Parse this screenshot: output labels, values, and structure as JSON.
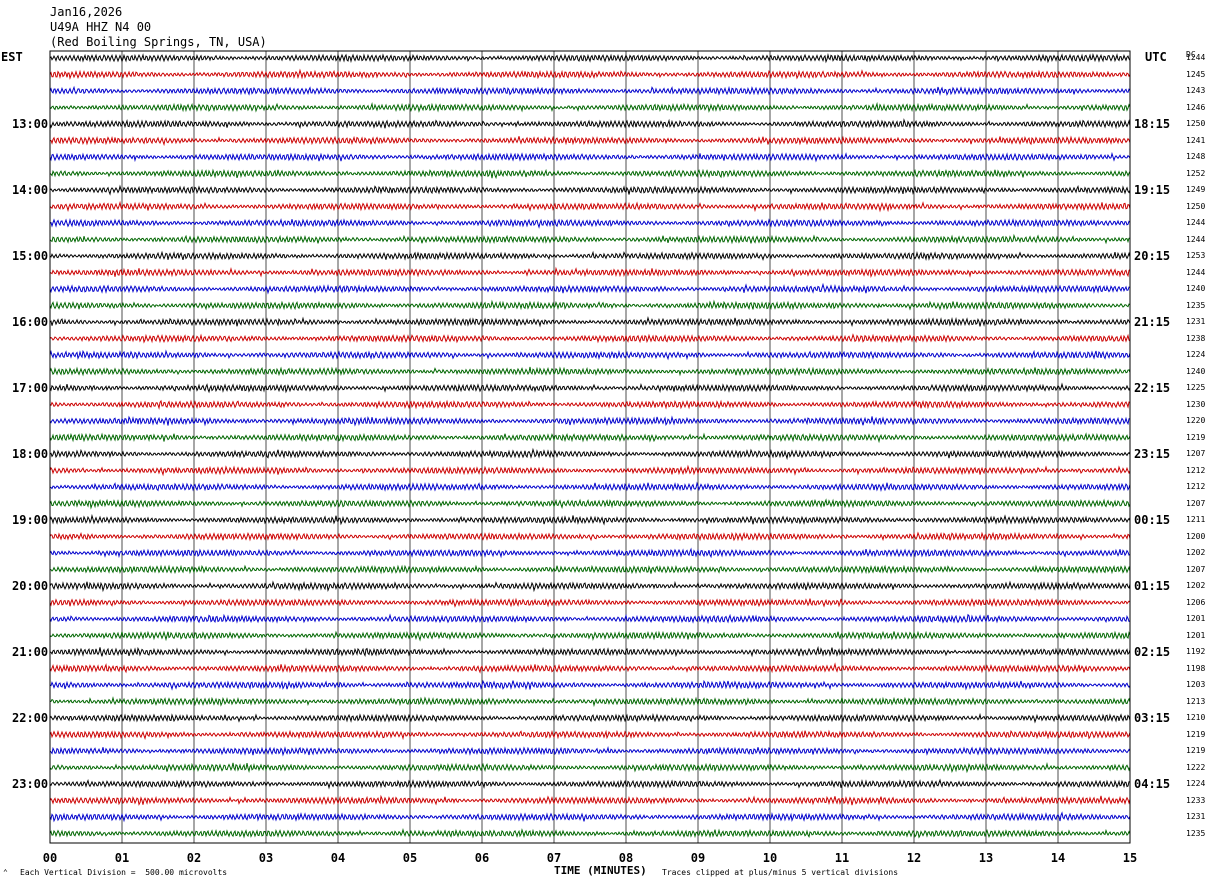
{
  "header": {
    "date": "Jan16,2026",
    "station": "U49A HHZ N4 00",
    "location": "(Red Boiling Springs, TN, USA)"
  },
  "left_zone_label": "EST",
  "right_zone_label": "UTC",
  "dc_header": "DC",
  "xlabel": "TIME (MINUTES)",
  "footer": {
    "scale_note": "Each Vertical Division =  500.00 microvolts",
    "clip_note": "Traces clipped at plus/minus 5 vertical divisions"
  },
  "trace_colors": [
    "#000000",
    "#cc0000",
    "#0000cc",
    "#006600"
  ],
  "chart_data": {
    "type": "line",
    "title": "Jan16,2026 U49A HHZ N4 00 (Red Boiling Springs, TN, USA)",
    "xlabel": "TIME (MINUTES)",
    "xlim": [
      0,
      15
    ],
    "x_ticks": [
      "00",
      "01",
      "02",
      "03",
      "04",
      "05",
      "06",
      "07",
      "08",
      "09",
      "10",
      "11",
      "12",
      "13",
      "14",
      "15"
    ],
    "est_hour_labels": [
      "13:00",
      "14:00",
      "15:00",
      "16:00",
      "17:00",
      "18:00",
      "19:00",
      "20:00",
      "21:00",
      "22:00",
      "23:00"
    ],
    "utc_hour_labels": [
      "18:15",
      "19:15",
      "20:15",
      "21:15",
      "22:15",
      "23:15",
      "00:15",
      "01:15",
      "02:15",
      "03:15",
      "04:15"
    ],
    "trace_count": 48,
    "dc_offsets": [
      1244,
      1245,
      1243,
      1246,
      1250,
      1241,
      1248,
      1252,
      1249,
      1250,
      1244,
      1244,
      1253,
      1244,
      1240,
      1235,
      1231,
      1238,
      1224,
      1240,
      1225,
      1230,
      1220,
      1219,
      1207,
      1212,
      1212,
      1207,
      1211,
      1200,
      1202,
      1207,
      1202,
      1206,
      1201,
      1201,
      1192,
      1198,
      1203,
      1213,
      1210,
      1219,
      1219,
      1222,
      1224,
      1233,
      1231,
      1235
    ]
  }
}
